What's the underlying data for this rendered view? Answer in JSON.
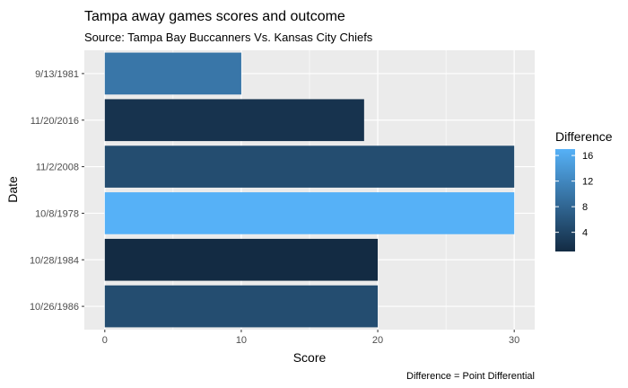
{
  "chart_data": {
    "type": "bar",
    "orientation": "horizontal",
    "title": "Tampa away games scores and outcome",
    "subtitle": "Source: Tampa Bay Buccanners Vs. Kansas City Chiefs",
    "xlabel": "Score",
    "ylabel": "Date",
    "caption": "Difference = Point Differential",
    "xlim": [
      0,
      31.5
    ],
    "xticks": [
      0,
      10,
      20,
      30
    ],
    "grid": true,
    "categories": [
      "9/13/1981",
      "11/20/2016",
      "11/2/2008",
      "10/8/1978",
      "10/28/1984",
      "10/26/1986"
    ],
    "values": [
      10,
      19,
      30,
      30,
      20,
      20
    ],
    "fill_values": [
      10,
      2,
      5,
      17,
      1,
      5
    ],
    "legend": {
      "title": "Difference",
      "position": "right",
      "ticks": [
        4,
        8,
        12,
        16
      ],
      "range": [
        1,
        17
      ],
      "color_low": "#132B43",
      "color_high": "#56B1F7"
    }
  }
}
